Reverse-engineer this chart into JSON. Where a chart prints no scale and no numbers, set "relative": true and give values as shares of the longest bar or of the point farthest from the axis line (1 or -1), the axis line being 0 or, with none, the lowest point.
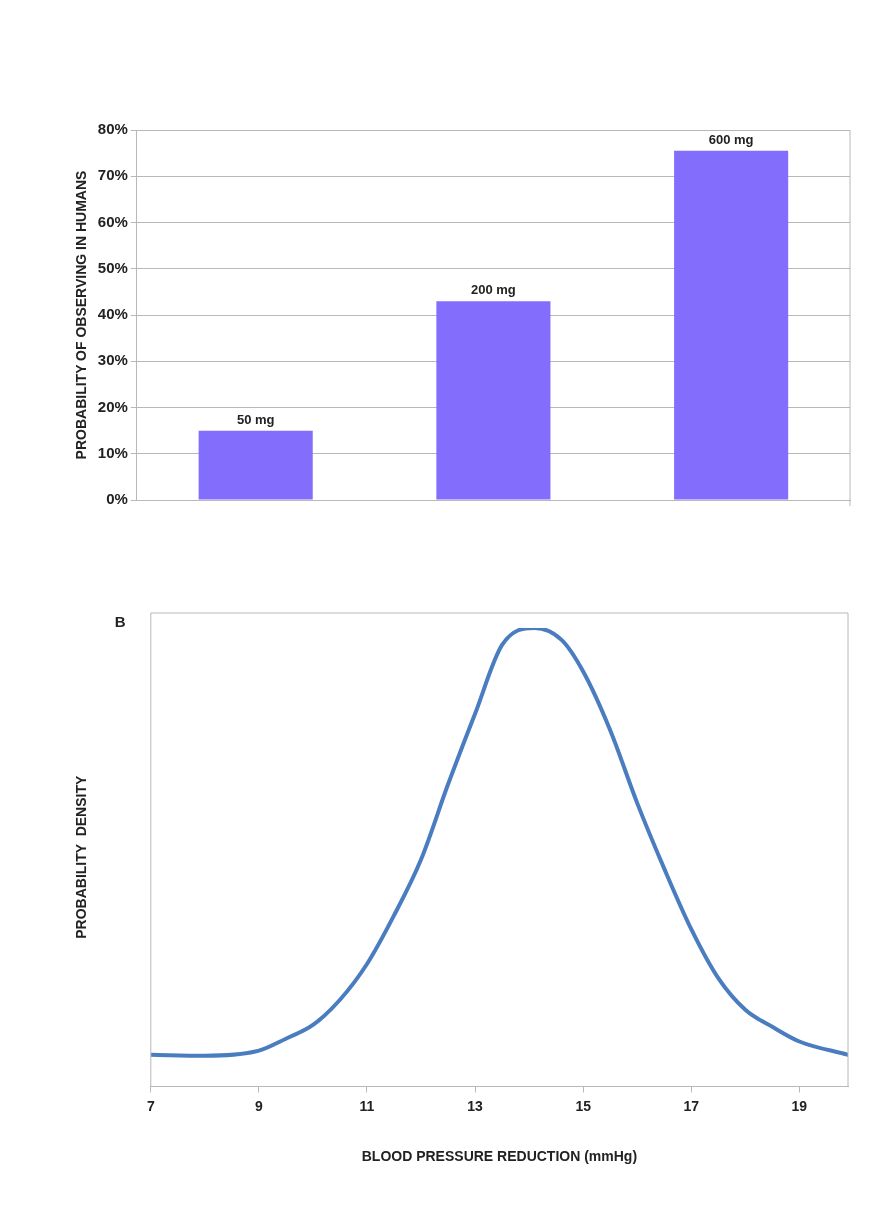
{
  "chart_data": [
    {
      "type": "bar",
      "ylabel": "PROBABILITY OF OBSERVING IN HUMANS",
      "categories": [
        "50 mg",
        "200 mg",
        "600 mg"
      ],
      "values": [
        15,
        43,
        75.5
      ],
      "color": "#836dfd",
      "ylim": [
        0,
        80
      ],
      "yticks": [
        {
          "value": 0,
          "label": "0%"
        },
        {
          "value": 10,
          "label": "10%"
        },
        {
          "value": 20,
          "label": "20%"
        },
        {
          "value": 30,
          "label": "30%"
        },
        {
          "value": 40,
          "label": "40%"
        },
        {
          "value": 50,
          "label": "50%"
        },
        {
          "value": 60,
          "label": "60%"
        },
        {
          "value": 70,
          "label": "70%"
        },
        {
          "value": 80,
          "label": "80%"
        }
      ],
      "grid": "y",
      "tick_labels": "y",
      "legend": false
    },
    {
      "type": "line",
      "title": "B",
      "xlabel": "BLOOD PRESSURE REDUCTION (mmHg)",
      "ylabel": "PROBABILITY  DENSITY",
      "relative": true,
      "x": [
        7,
        8,
        9,
        9.5,
        10,
        10.5,
        11,
        11.5,
        12,
        12.5,
        13,
        13.5,
        14.1,
        14.6,
        15,
        15.5,
        16,
        16.5,
        17,
        17.5,
        18,
        18.5,
        19,
        19.9
      ],
      "values": [
        0.069,
        0.067,
        0.078,
        0.104,
        0.134,
        0.189,
        0.267,
        0.373,
        0.495,
        0.659,
        0.813,
        0.963,
        1,
        0.974,
        0.905,
        0.777,
        0.618,
        0.475,
        0.343,
        0.236,
        0.167,
        0.13,
        0.098,
        0.069
      ],
      "color": "#4a7cc0",
      "xlim": [
        7,
        19.9
      ],
      "xticks": [
        7,
        9,
        11,
        13,
        15,
        17,
        19
      ],
      "grid": false,
      "tick_labels": "x",
      "legend": false,
      "marker": "none",
      "line_style": "solid"
    }
  ]
}
